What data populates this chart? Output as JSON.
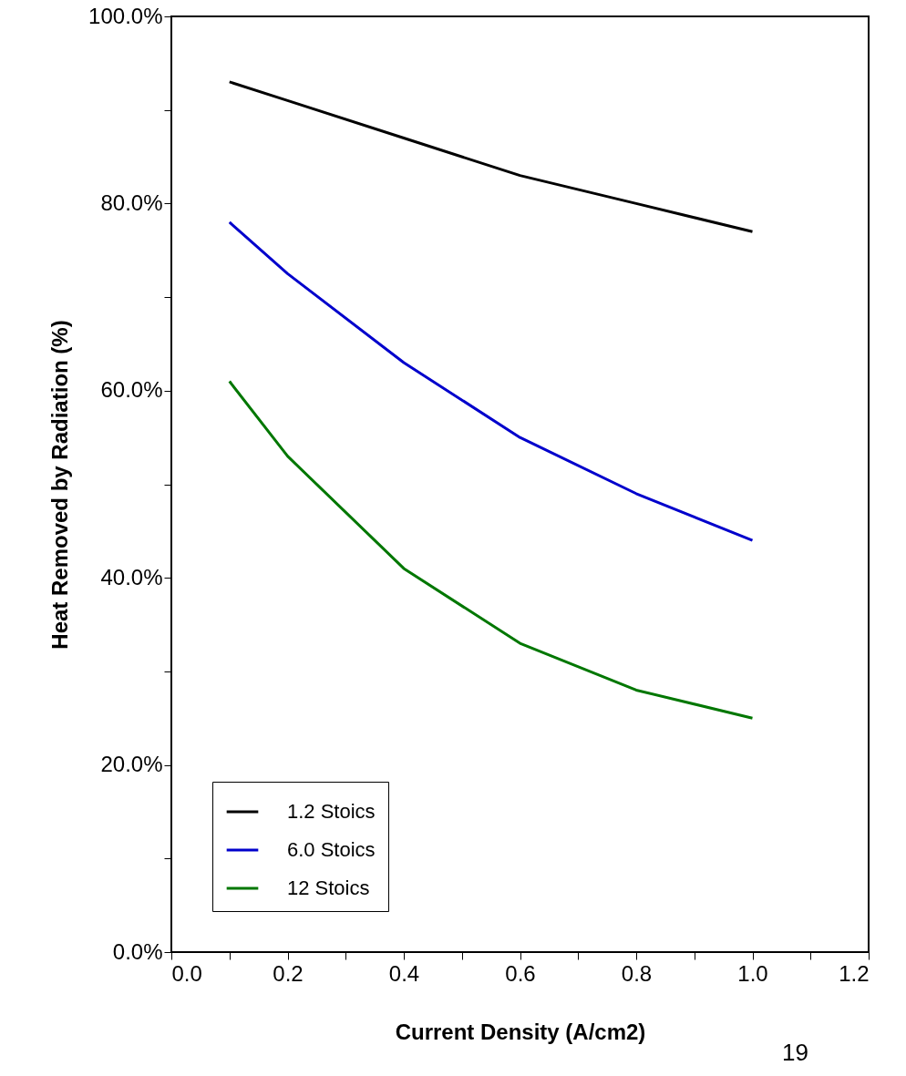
{
  "chart_data": {
    "type": "line",
    "xlabel": "Current Density (A/cm2)",
    "ylabel": "Heat Removed by Radiation (%)",
    "x": [
      0.1,
      0.2,
      0.4,
      0.6,
      0.8,
      1.0
    ],
    "series": [
      {
        "name": "1.2 Stoics",
        "color": "#000000",
        "values": [
          93,
          91,
          87,
          83,
          80,
          77
        ]
      },
      {
        "name": "6.0 Stoics",
        "color": "#0000cc",
        "values": [
          78,
          72.5,
          63,
          55,
          49,
          44
        ]
      },
      {
        "name": "12 Stoics",
        "color": "#007700",
        "values": [
          61,
          53,
          41,
          33,
          28,
          25
        ]
      }
    ],
    "xlim": [
      0,
      1.2
    ],
    "ylim": [
      0,
      100
    ],
    "xticks": [
      {
        "value": 0,
        "label": "0.0"
      },
      {
        "value": 0.1,
        "label": null
      },
      {
        "value": 0.2,
        "label": "0.2"
      },
      {
        "value": 0.3,
        "label": null
      },
      {
        "value": 0.4,
        "label": "0.4"
      },
      {
        "value": 0.5,
        "label": null
      },
      {
        "value": 0.6,
        "label": "0.6"
      },
      {
        "value": 0.7,
        "label": null
      },
      {
        "value": 0.8,
        "label": "0.8"
      },
      {
        "value": 0.9,
        "label": null
      },
      {
        "value": 1.0,
        "label": "1.0"
      },
      {
        "value": 1.1,
        "label": null
      },
      {
        "value": 1.2,
        "label": "1.2"
      }
    ],
    "yticks": [
      {
        "value": 0,
        "label": "0.0%"
      },
      {
        "value": 10,
        "label": null
      },
      {
        "value": 20,
        "label": "20.0%"
      },
      {
        "value": 30,
        "label": null
      },
      {
        "value": 40,
        "label": "40.0%"
      },
      {
        "value": 50,
        "label": null
      },
      {
        "value": 60,
        "label": "60.0%"
      },
      {
        "value": 70,
        "label": null
      },
      {
        "value": 80,
        "label": "80.0%"
      },
      {
        "value": 90,
        "label": null
      },
      {
        "value": 100,
        "label": "100.0%"
      }
    ],
    "grid": false,
    "legend": "bottom left",
    "marker": "none",
    "line_style": "solid",
    "annotations": [
      "19"
    ]
  }
}
